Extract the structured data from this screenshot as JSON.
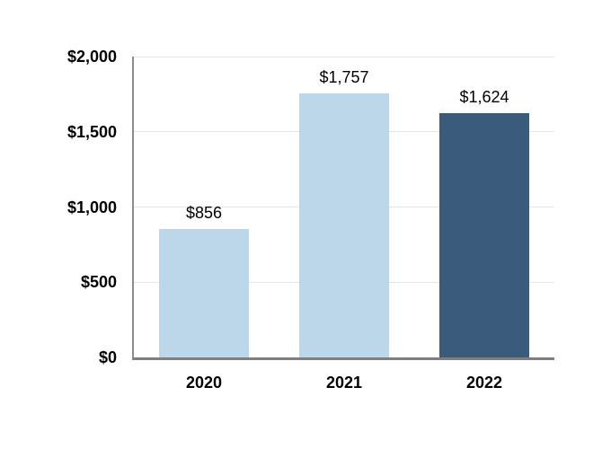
{
  "chart_data": {
    "type": "bar",
    "title": "",
    "xlabel": "",
    "ylabel": "",
    "categories": [
      "2020",
      "2021",
      "2022"
    ],
    "values": [
      856,
      1757,
      1624
    ],
    "value_labels": [
      "$856",
      "$1,757",
      "$1,624"
    ],
    "bar_colors": [
      "#BCD6EA",
      "#BCD6EA",
      "#3B5B7C"
    ],
    "ylim": [
      0,
      2000
    ],
    "yticks": [
      0,
      500,
      1000,
      1500,
      2000
    ],
    "ytick_labels": [
      "$0",
      "$500",
      "$1,000",
      "$1,500",
      "$2,000"
    ],
    "grid": true,
    "legend": false
  },
  "colors": {
    "background": "#FFFFFF",
    "gridline": "#E5E5E5",
    "y_axis_line": "#8C8C8C",
    "x_axis_line": "#7F7F7F",
    "text": "#000000"
  },
  "layout_hints": {
    "legend_position": "none",
    "gridlines": "horizontal"
  }
}
